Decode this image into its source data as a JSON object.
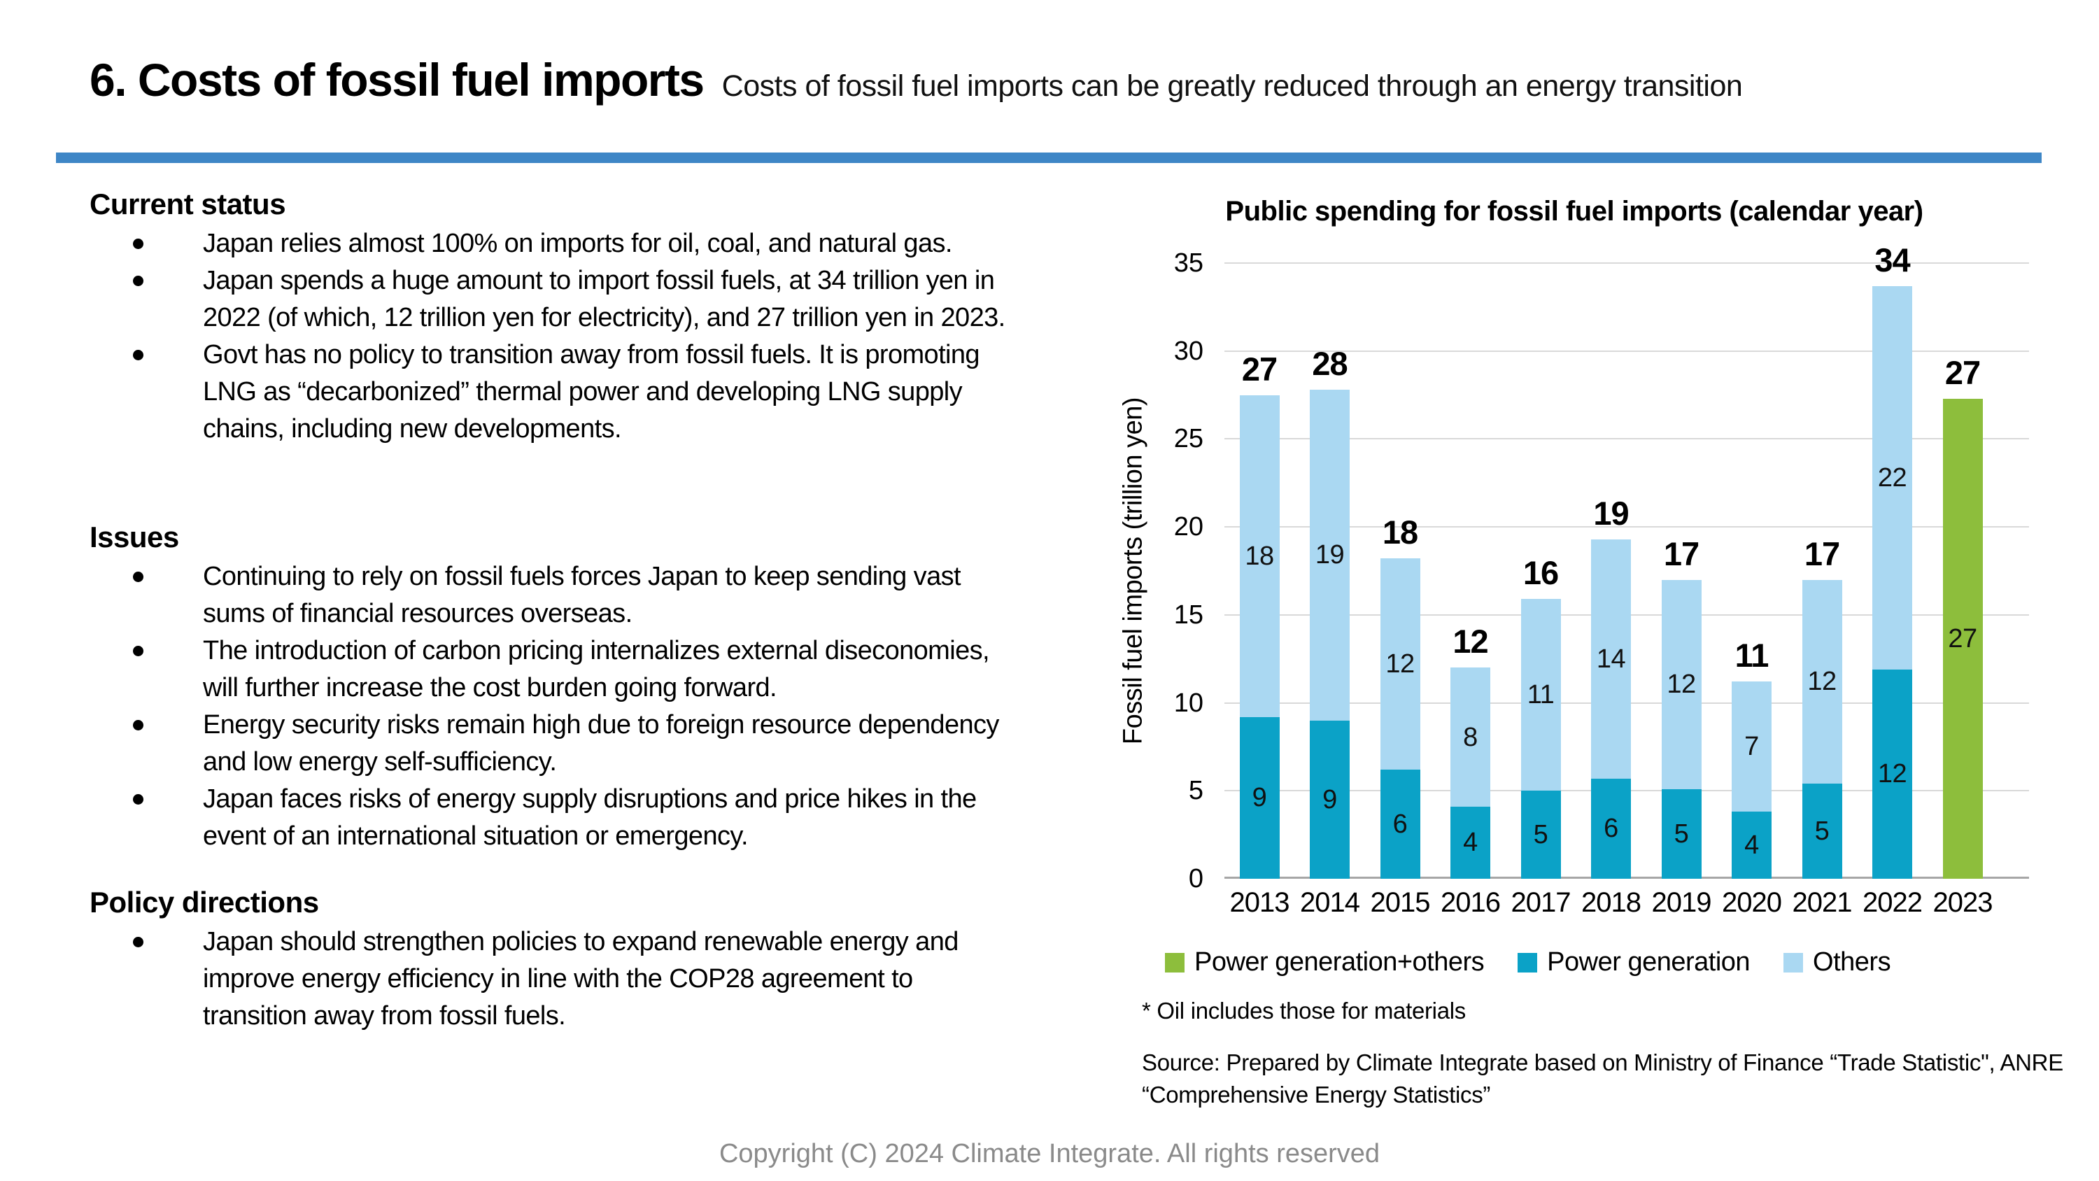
{
  "slide": {
    "title": "6. Costs of fossil fuel imports",
    "subtitle": "Costs of fossil fuel imports can be greatly reduced through an energy transition",
    "divider_color": "#3e86c6",
    "copyright": "Copyright (C) 2024 Climate Integrate. All rights reserved"
  },
  "sections": [
    {
      "id": "current-status",
      "heading": "Current status",
      "bullets": [
        "Japan relies almost 100% on imports for oil, coal, and natural gas.",
        "Japan spends a huge amount to import fossil fuels, at 34 trillion yen in 2022 (of which, 12 trillion yen for electricity), and 27 trillion yen in 2023.",
        "Govt has no policy to transition away from fossil fuels. It is promoting LNG as “decarbonized” thermal power and developing LNG supply chains, including new developments."
      ]
    },
    {
      "id": "issues",
      "heading": "Issues",
      "bullets": [
        "Continuing to rely on fossil fuels forces Japan to keep sending vast sums of financial resources overseas.",
        "The introduction of carbon pricing internalizes external diseconomies, will further increase the cost burden going forward.",
        "Energy security risks remain high due to foreign resource dependency and low energy self-sufficiency.",
        "Japan faces risks of energy supply disruptions and price hikes in the event of an international situation or emergency."
      ]
    },
    {
      "id": "policy-directions",
      "heading": "Policy directions",
      "bullets": [
        "Japan should strengthen policies to expand renewable energy and improve energy efficiency in line with the COP28 agreement to transition away from fossil fuels."
      ]
    }
  ],
  "chart": {
    "title": "Public spending for fossil fuel imports (calendar year)",
    "footnote": "* Oil includes those for materials",
    "source_line1": "Source: Prepared by Climate Integrate based on Ministry of Finance “Trade Statistic\", ANRE",
    "source_line2": "“Comprehensive Energy Statistics”"
  },
  "chart_data": {
    "type": "bar",
    "stacked": true,
    "title": "Public spending for fossil fuel imports (calendar year)",
    "xlabel": "",
    "ylabel": "Fossil fuel imports (trillion yen)",
    "ylim": [
      0,
      35
    ],
    "yticks": [
      0,
      5,
      10,
      15,
      20,
      25,
      30,
      35
    ],
    "grid": true,
    "legend_position": "bottom",
    "categories": [
      "2013",
      "2014",
      "2015",
      "2016",
      "2017",
      "2018",
      "2019",
      "2020",
      "2021",
      "2022",
      "2023"
    ],
    "series": [
      {
        "key": "power-generation",
        "name": "Power generation",
        "color": "#0ba2c7",
        "values": [
          9,
          9,
          6,
          4,
          5,
          6,
          5,
          4,
          5,
          12,
          null
        ],
        "drawn": [
          9.2,
          9.0,
          6.2,
          4.1,
          5.0,
          5.7,
          5.1,
          3.8,
          5.4,
          11.9,
          null
        ]
      },
      {
        "key": "others",
        "name": "Others",
        "color": "#aad8f2",
        "values": [
          18,
          19,
          12,
          8,
          11,
          14,
          12,
          7,
          12,
          22,
          null
        ],
        "drawn": [
          18.3,
          18.8,
          12.0,
          7.9,
          10.9,
          13.6,
          11.9,
          7.4,
          11.6,
          21.8,
          null
        ]
      },
      {
        "key": "power-generation-others",
        "name": "Power generation+others",
        "color": "#8dbe3c",
        "values": [
          null,
          null,
          null,
          null,
          null,
          null,
          null,
          null,
          null,
          null,
          27
        ],
        "drawn": [
          null,
          null,
          null,
          null,
          null,
          null,
          null,
          null,
          null,
          null,
          27.3
        ]
      }
    ],
    "totals": [
      "27",
      "28",
      "18",
      "12",
      "16",
      "19",
      "17",
      "11",
      "17",
      "34",
      "27"
    ],
    "legend": [
      {
        "key": "power-generation-others",
        "label": "Power generation+others",
        "color": "#8dbe3c"
      },
      {
        "key": "power-generation",
        "label": "Power generation",
        "color": "#0ba2c7"
      },
      {
        "key": "others",
        "label": "Others",
        "color": "#aad8f2"
      }
    ]
  }
}
